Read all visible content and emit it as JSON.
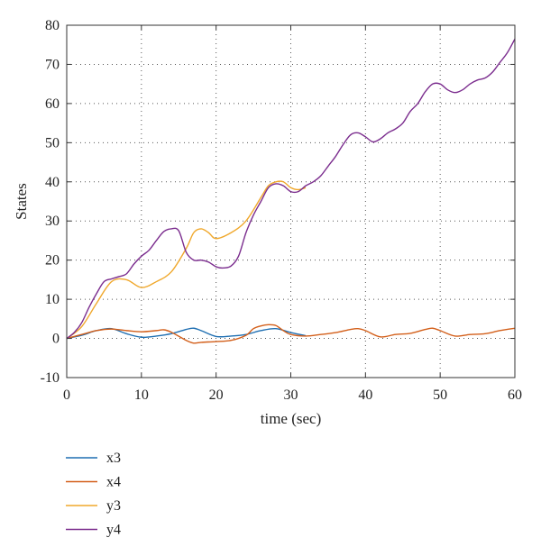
{
  "chart_data": {
    "type": "line",
    "xlabel": "time (sec)",
    "ylabel": "States",
    "xlim": [
      0,
      60
    ],
    "ylim": [
      -10,
      80
    ],
    "xticks": [
      0,
      10,
      20,
      30,
      40,
      50,
      60
    ],
    "yticks": [
      -10,
      0,
      10,
      20,
      30,
      40,
      50,
      60,
      70,
      80
    ],
    "xtick_labels": [
      "0",
      "10",
      "20",
      "30",
      "40",
      "50",
      "60"
    ],
    "ytick_labels": [
      "-10",
      "0",
      "10",
      "20",
      "30",
      "40",
      "50",
      "60",
      "70",
      "80"
    ],
    "grid": true,
    "grid_style": "dotted",
    "legend_position": "below",
    "series": [
      {
        "name": "x3",
        "color": "#1f6fb2",
        "x": [
          0,
          2,
          4,
          6,
          8,
          10,
          12,
          14,
          16,
          17,
          18,
          20,
          22,
          24,
          26,
          28,
          30,
          32
        ],
        "y": [
          0,
          0.8,
          2.0,
          2.5,
          1.2,
          0.3,
          0.6,
          1.2,
          2.3,
          2.6,
          2.0,
          0.5,
          0.6,
          1.0,
          2.0,
          2.5,
          1.5,
          0.7
        ]
      },
      {
        "name": "x4",
        "color": "#d35f1a",
        "x": [
          0,
          2,
          4,
          6,
          8,
          10,
          12,
          13,
          14,
          16,
          17,
          18,
          20,
          22,
          24,
          25,
          26,
          27,
          28,
          29,
          30,
          32,
          34,
          36,
          38,
          39,
          40,
          42,
          44,
          46,
          48,
          49,
          50,
          52,
          54,
          56,
          58,
          60
        ],
        "y": [
          0,
          1.0,
          2.0,
          2.4,
          2.0,
          1.7,
          2.0,
          2.2,
          1.6,
          -0.5,
          -1.2,
          -1.0,
          -0.8,
          -0.5,
          0.8,
          2.5,
          3.2,
          3.5,
          3.3,
          2.0,
          1.0,
          0.6,
          1.0,
          1.5,
          2.3,
          2.5,
          2.0,
          0.4,
          1.0,
          1.3,
          2.3,
          2.6,
          2.0,
          0.6,
          1.0,
          1.2,
          2.0,
          2.6
        ]
      },
      {
        "name": "y3",
        "color": "#f0a82c",
        "x": [
          0,
          2,
          4,
          6,
          8,
          10,
          12,
          14,
          16,
          17,
          18,
          19,
          20,
          22,
          24,
          26,
          27,
          28,
          29,
          30,
          31,
          32
        ],
        "y": [
          0,
          3.0,
          9.0,
          14.5,
          15.0,
          13.0,
          14.5,
          17.0,
          23.0,
          27.0,
          28.0,
          27.0,
          25.5,
          27.0,
          30.0,
          36.0,
          39.0,
          40.0,
          40.0,
          38.5,
          38.0,
          38.5
        ]
      },
      {
        "name": "y4",
        "color": "#7b2d8e",
        "x": [
          0,
          1,
          2,
          3,
          4,
          5,
          6,
          7,
          8,
          9,
          10,
          11,
          12,
          13,
          14,
          15,
          16,
          17,
          18,
          19,
          20,
          21,
          22,
          23,
          24,
          25,
          26,
          27,
          28,
          29,
          30,
          31,
          32,
          33,
          34,
          35,
          36,
          37,
          38,
          39,
          40,
          41,
          42,
          43,
          44,
          45,
          46,
          47,
          48,
          49,
          50,
          51,
          52,
          53,
          54,
          55,
          56,
          57,
          58,
          59,
          60
        ],
        "y": [
          0,
          1.5,
          4.0,
          8.0,
          11.5,
          14.5,
          15.2,
          15.8,
          16.5,
          19.0,
          21.0,
          22.5,
          25.0,
          27.3,
          28.0,
          27.5,
          22.0,
          20.0,
          20.0,
          19.5,
          18.3,
          18.0,
          18.5,
          21.0,
          27.0,
          31.5,
          35.0,
          38.5,
          39.5,
          39.0,
          37.5,
          37.5,
          39.0,
          40.0,
          41.5,
          44.0,
          46.5,
          49.5,
          52.0,
          52.5,
          51.5,
          50.2,
          51.0,
          52.5,
          53.5,
          55.0,
          58.0,
          60.0,
          63.0,
          65.0,
          65.0,
          63.5,
          62.8,
          63.5,
          65.0,
          66.0,
          66.5,
          68.0,
          70.5,
          73.0,
          76.5
        ]
      }
    ]
  }
}
